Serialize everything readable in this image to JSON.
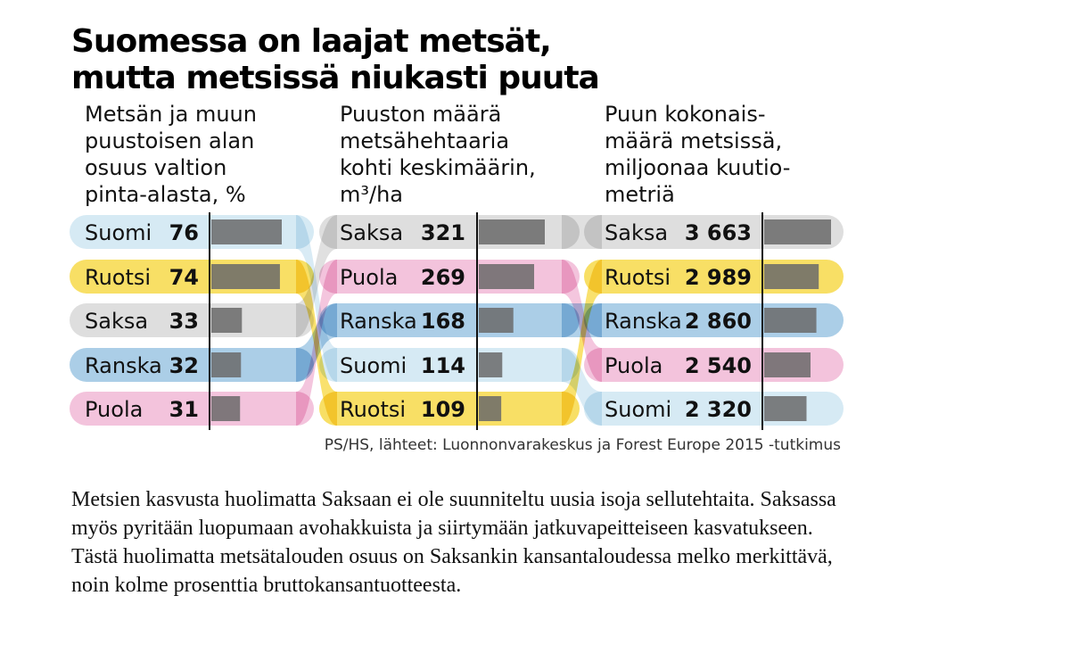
{
  "title": [
    "Suomessa on laajat metsät,",
    "mutta metsissä niukasti puuta"
  ],
  "source": "PS/HS, lähteet: Luonnonvarakeskus ja Forest Europe 2015 -tutkimus",
  "body_text": "Metsien kasvusta huolimatta Saksaan ei ole suunniteltu uusia isoja sellutehtaita. Saksassa myös pyritään luopumaan avohakkuista ja siirtymään jatkuvapeitteiseen kasvatukseen. Tästä huolimatta metsätalouden osuus on Saksankin kansantaloudessa melko merkittävä, noin kolme prosenttia bruttokansantuotteesta.",
  "colors": {
    "Suomi": "#cfe6f2",
    "Ruotsi": "#f7d94a",
    "Saksa": "#d8d8d8",
    "Ranska": "#9cc6e3",
    "Puola": "#f1b8d6",
    "bar": "#6a6a6a"
  },
  "chart_data": {
    "type": "bar",
    "panels": [
      {
        "heading": [
          "Metsän ja muun",
          "puustoisen alan",
          "osuus valtion",
          "pinta-alasta, %"
        ],
        "rows": [
          {
            "country": "Suomi",
            "value": 76,
            "label": "76"
          },
          {
            "country": "Ruotsi",
            "value": 74,
            "label": "74"
          },
          {
            "country": "Saksa",
            "value": 33,
            "label": "33"
          },
          {
            "country": "Ranska",
            "value": 32,
            "label": "32"
          },
          {
            "country": "Puola",
            "value": 31,
            "label": "31"
          }
        ]
      },
      {
        "heading": [
          "Puuston määrä",
          "metsähehtaaria",
          "kohti keskimäärin,",
          "m³/ha"
        ],
        "rows": [
          {
            "country": "Saksa",
            "value": 321,
            "label": "321"
          },
          {
            "country": "Puola",
            "value": 269,
            "label": "269"
          },
          {
            "country": "Ranska",
            "value": 168,
            "label": "168"
          },
          {
            "country": "Suomi",
            "value": 114,
            "label": "114"
          },
          {
            "country": "Ruotsi",
            "value": 109,
            "label": "109"
          }
        ]
      },
      {
        "heading": [
          "Puun kokonais-",
          "määrä metsissä,",
          "miljoonaa kuutio-",
          "metriä"
        ],
        "rows": [
          {
            "country": "Saksa",
            "value": 3663,
            "label": "3 663"
          },
          {
            "country": "Ruotsi",
            "value": 2989,
            "label": "2 989"
          },
          {
            "country": "Ranska",
            "value": 2860,
            "label": "2 860"
          },
          {
            "country": "Puola",
            "value": 2540,
            "label": "2 540"
          },
          {
            "country": "Suomi",
            "value": 2320,
            "label": "2 320"
          }
        ]
      }
    ]
  }
}
